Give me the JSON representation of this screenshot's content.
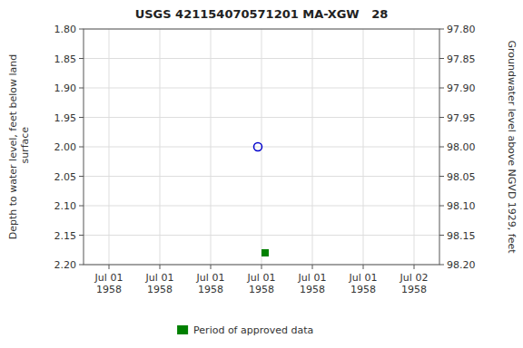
{
  "chart_data": {
    "type": "scatter",
    "title": "USGS 421154070571201 MA-XGW   28",
    "y_label": "Depth to water level, feet below land\n surface",
    "y2_label": "Groundwater level above NGVD 1929, feet",
    "categories": [
      "Jul 01\n1958",
      "Jul 01\n1958",
      "Jul 01\n1958",
      "Jul 01\n1958",
      "Jul 01\n1958",
      "Jul 01\n1958",
      "Jul 02\n1958"
    ],
    "series": [
      {
        "color": "#0000cc",
        "marker": "open-circle",
        "values": [
          null,
          null,
          null,
          2.0,
          null,
          null,
          null
        ]
      },
      {
        "name": "Period of approved data",
        "color": "#008000",
        "marker": "square",
        "values": [
          null,
          null,
          null,
          2.18,
          null,
          null,
          null
        ]
      }
    ],
    "ylim": [
      2.2,
      1.8
    ],
    "yticks": [
      {
        "value": 1.8,
        "label": "1.80"
      },
      {
        "value": 1.85,
        "label": "1.85"
      },
      {
        "value": 1.9,
        "label": "1.90"
      },
      {
        "value": 1.95,
        "label": "1.95"
      },
      {
        "value": 2.0,
        "label": "2.00"
      },
      {
        "value": 2.05,
        "label": "2.05"
      },
      {
        "value": 2.1,
        "label": "2.10"
      },
      {
        "value": 2.15,
        "label": "2.15"
      },
      {
        "value": 2.2,
        "label": "2.20"
      }
    ],
    "y2lim": [
      98.2,
      97.8
    ],
    "y2ticks": [
      {
        "value": 97.8,
        "label": "97.80"
      },
      {
        "value": 97.85,
        "label": "97.85"
      },
      {
        "value": 97.9,
        "label": "97.90"
      },
      {
        "value": 97.95,
        "label": "97.95"
      },
      {
        "value": 98.0,
        "label": "98.00"
      },
      {
        "value": 98.05,
        "label": "98.05"
      },
      {
        "value": 98.1,
        "label": "98.10"
      },
      {
        "value": 98.15,
        "label": "98.15"
      },
      {
        "value": 98.2,
        "label": "98.20"
      }
    ],
    "grid": true,
    "legend": "bottom"
  }
}
